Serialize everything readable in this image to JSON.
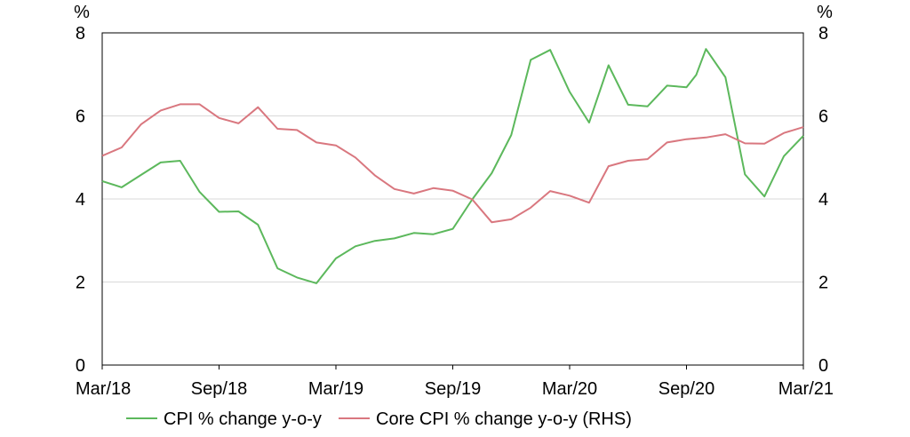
{
  "chart_data": {
    "type": "line",
    "title": "",
    "xlabel": "",
    "left_axis": {
      "unit": "%",
      "ylim": [
        0,
        8
      ],
      "ticks": [
        0,
        2,
        4,
        6,
        8
      ]
    },
    "right_axis": {
      "unit": "%",
      "ylim": [
        0,
        8
      ],
      "ticks": [
        0,
        2,
        4,
        6,
        8
      ]
    },
    "x_tick_labels": [
      "Mar/18",
      "Sep/18",
      "Mar/19",
      "Sep/19",
      "Mar/20",
      "Sep/20",
      "Mar/21"
    ],
    "x_range_months": [
      0,
      36
    ],
    "grid": "horizontal",
    "legend_position": "bottom",
    "series": [
      {
        "name": "CPI % change y-o-y",
        "axis": "left",
        "color": "#5cb85c",
        "x": [
          0,
          1,
          2,
          3,
          4,
          5,
          6,
          7,
          8,
          9,
          10,
          11,
          12,
          13,
          14,
          15,
          16,
          17,
          18,
          19,
          20,
          21,
          22,
          23,
          24,
          25,
          26,
          27,
          28,
          29,
          30,
          30.5,
          31,
          32,
          33,
          34,
          35,
          36
        ],
        "values": [
          4.43,
          4.28,
          4.58,
          4.88,
          4.92,
          4.17,
          3.69,
          3.7,
          3.38,
          2.33,
          2.11,
          1.97,
          2.57,
          2.86,
          2.99,
          3.05,
          3.18,
          3.15,
          3.28,
          3.99,
          4.62,
          5.54,
          7.35,
          7.59,
          6.58,
          5.84,
          7.22,
          6.27,
          6.23,
          6.73,
          6.69,
          6.99,
          7.61,
          6.93,
          4.59,
          4.06,
          5.03,
          5.52
        ]
      },
      {
        "name": "Core CPI % change y-o-y (RHS)",
        "axis": "right",
        "color": "#d9777f",
        "x": [
          0,
          1,
          2,
          3,
          4,
          5,
          6,
          7,
          8,
          9,
          10,
          11,
          12,
          13,
          14,
          15,
          16,
          17,
          18,
          19,
          20,
          21,
          22,
          23,
          24,
          25,
          26,
          27,
          28,
          29,
          30,
          30.5,
          31,
          32,
          33,
          34,
          35,
          36
        ],
        "values": [
          5.04,
          5.24,
          5.8,
          6.13,
          6.28,
          6.28,
          5.95,
          5.82,
          6.21,
          5.69,
          5.66,
          5.36,
          5.29,
          5.0,
          4.57,
          4.24,
          4.13,
          4.26,
          4.2,
          3.99,
          3.44,
          3.51,
          3.79,
          4.19,
          4.08,
          3.91,
          4.79,
          4.92,
          4.96,
          5.36,
          5.44,
          5.46,
          5.48,
          5.56,
          5.34,
          5.33,
          5.59,
          5.73
        ]
      }
    ]
  }
}
